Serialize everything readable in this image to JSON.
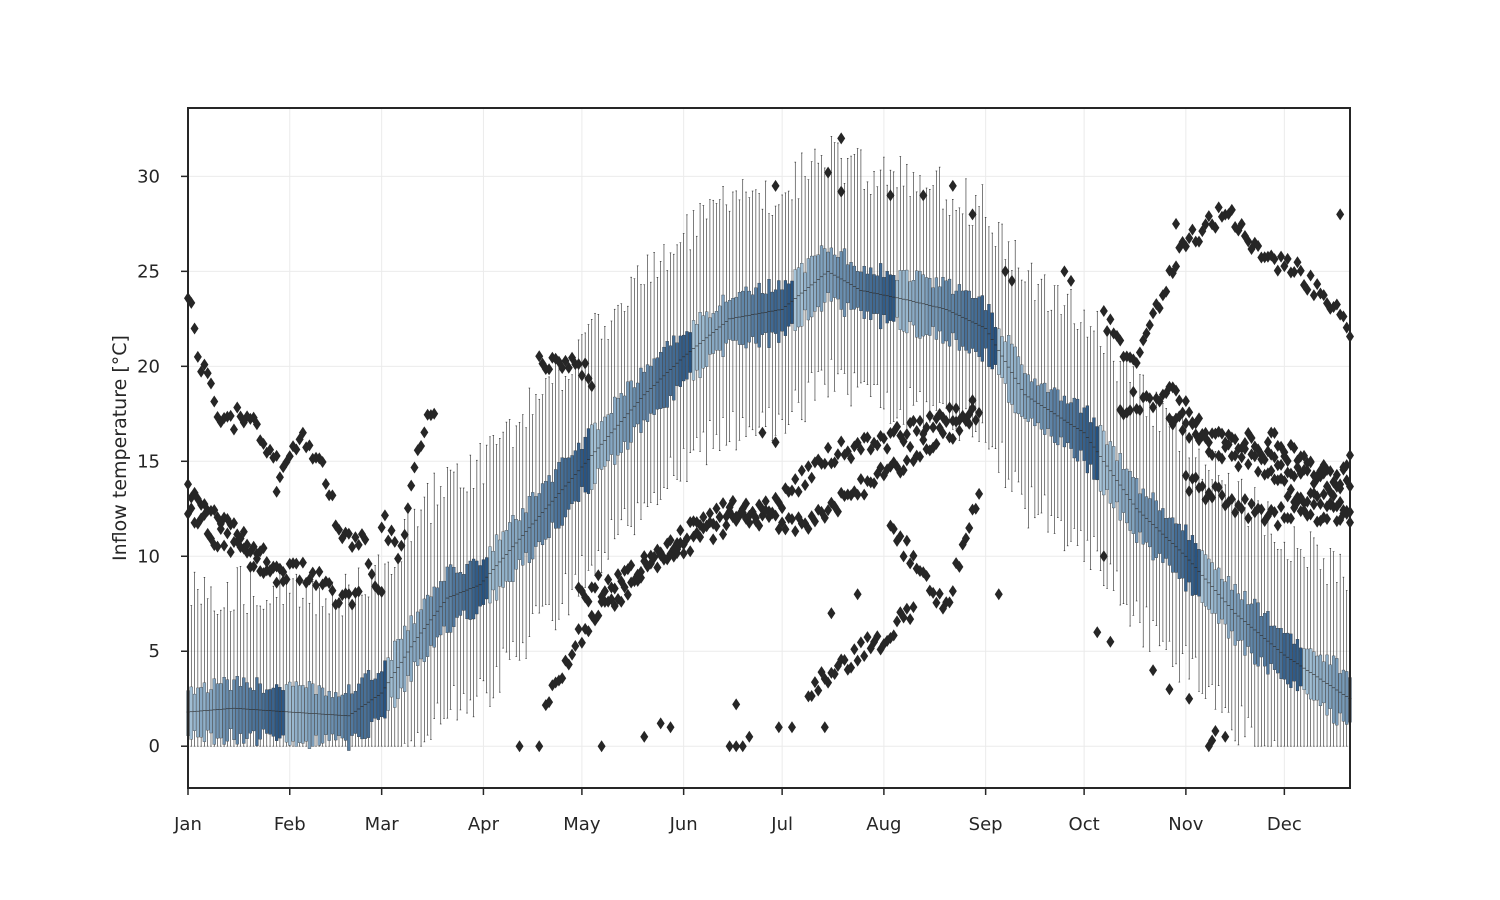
{
  "chart_data": {
    "type": "box",
    "title": "",
    "xlabel": "",
    "ylabel": "Inflow temperature [°C]",
    "x_tick_labels": [
      "Jan",
      "Feb",
      "Mar",
      "Apr",
      "May",
      "Jun",
      "Jul",
      "Aug",
      "Sep",
      "Oct",
      "Nov",
      "Dec"
    ],
    "y_ticks": [
      0,
      5,
      10,
      15,
      20,
      25,
      30
    ],
    "xlim": [
      1,
      355
    ],
    "ylim": [
      -2.2,
      33.6
    ],
    "grid": true,
    "box_color_light": "#a9c6da",
    "box_color_dark": "#1d4a7a",
    "flier_color": "#262626",
    "median_anchors": {
      "day": [
        1,
        15,
        32,
        50,
        60,
        70,
        80,
        90,
        105,
        120,
        140,
        152,
        166,
        182,
        196,
        206,
        220,
        232,
        244,
        256,
        274,
        290,
        305,
        320,
        335,
        355
      ],
      "median": [
        1.8,
        2.0,
        1.8,
        1.6,
        2.8,
        5.5,
        7.8,
        8.5,
        11.5,
        14.5,
        18.5,
        20.5,
        22.5,
        23.0,
        25.0,
        24.0,
        23.5,
        23.0,
        22.0,
        18.5,
        16.5,
        12.5,
        10.0,
        7.0,
        4.8,
        2.5
      ]
    },
    "outlier_tracks": [
      {
        "day": [
          0,
          10,
          20,
          30,
          38,
          48,
          53
        ],
        "value": [
          12.5,
          11.0,
          9.8,
          9.0,
          9.2,
          7.5,
          7.8
        ]
      },
      {
        "day": [
          0,
          10,
          20,
          30
        ],
        "value": [
          13.5,
          12.0,
          10.5,
          9.0
        ]
      },
      {
        "day": [
          0,
          5,
          12,
          20,
          28
        ],
        "value": [
          25.0,
          20.0,
          17.0,
          17.5,
          15.0
        ]
      },
      {
        "day": [
          28,
          35,
          40,
          48,
          55,
          60
        ],
        "value": [
          13.5,
          16.5,
          15.5,
          11.0,
          10.5,
          8.0
        ]
      },
      {
        "day": [
          60,
          66,
          70,
          76
        ],
        "value": [
          12.0,
          10.0,
          15.0,
          18.0
        ]
      },
      {
        "day": [
          120,
          135,
          150,
          168,
          182,
          198,
          212,
          228,
          240
        ],
        "value": [
          8.0,
          9.0,
          10.5,
          12.0,
          13.0,
          15.5,
          16.0,
          17.0,
          18.0
        ]
      },
      {
        "day": [
          150,
          160,
          170,
          185,
          200,
          215,
          232,
          242
        ],
        "value": [
          11.0,
          12.0,
          12.5,
          11.5,
          13.0,
          14.5,
          16.5,
          17.5
        ]
      },
      {
        "day": [
          110,
          118,
          125,
          135,
          145,
          150
        ],
        "value": [
          2.0,
          5.0,
          7.0,
          8.0,
          10.5,
          10.0
        ]
      },
      {
        "day": [
          108,
          116,
          124
        ],
        "value": [
          20.0,
          20.5,
          19.5
        ]
      },
      {
        "day": [
          190,
          205,
          212,
          218,
          222
        ],
        "value": [
          3.0,
          5.0,
          5.5,
          6.5,
          7.5
        ]
      },
      {
        "day": [
          215,
          225,
          232,
          242
        ],
        "value": [
          11.5,
          9.0,
          7.5,
          13.0
        ]
      },
      {
        "day": [
          280,
          290,
          298,
          305,
          310,
          318,
          325,
          335,
          345,
          355
        ],
        "value": [
          22.5,
          20.0,
          24.0,
          26.5,
          27.0,
          28.5,
          26.0,
          25.5,
          24.0,
          22.0
        ]
      },
      {
        "day": [
          285,
          300,
          312,
          325,
          340,
          355
        ],
        "value": [
          18.0,
          18.5,
          16.5,
          16.0,
          14.5,
          14.0
        ]
      },
      {
        "day": [
          300,
          312,
          325,
          335,
          345,
          355
        ],
        "value": [
          17.5,
          16.0,
          15.0,
          13.5,
          13.0,
          12.5
        ]
      },
      {
        "day": [
          305,
          318,
          330,
          342,
          355
        ],
        "value": [
          14.0,
          13.0,
          12.0,
          12.5,
          12.0
        ]
      },
      {
        "day": [
          330,
          340,
          350,
          355
        ],
        "value": [
          16.5,
          15.0,
          13.5,
          15.0
        ]
      }
    ],
    "outlier_points": [
      {
        "day": 102,
        "value": 0.0
      },
      {
        "day": 108,
        "value": 0.0
      },
      {
        "day": 127,
        "value": 0.0
      },
      {
        "day": 140,
        "value": 0.5
      },
      {
        "day": 145,
        "value": 1.2
      },
      {
        "day": 148,
        "value": 1.0
      },
      {
        "day": 166,
        "value": 0.0
      },
      {
        "day": 168,
        "value": 0.0
      },
      {
        "day": 170,
        "value": 0.0
      },
      {
        "day": 172,
        "value": 0.5
      },
      {
        "day": 168,
        "value": 2.2
      },
      {
        "day": 181,
        "value": 1.0
      },
      {
        "day": 185,
        "value": 1.0
      },
      {
        "day": 195,
        "value": 1.0
      },
      {
        "day": 197,
        "value": 7.0
      },
      {
        "day": 205,
        "value": 8.0
      },
      {
        "day": 215,
        "value": 29.0
      },
      {
        "day": 225,
        "value": 29.0
      },
      {
        "day": 234,
        "value": 29.5
      },
      {
        "day": 240,
        "value": 28.0
      },
      {
        "day": 200,
        "value": 29.2
      },
      {
        "day": 200,
        "value": 32.0
      },
      {
        "day": 196,
        "value": 30.2
      },
      {
        "day": 180,
        "value": 29.5
      },
      {
        "day": 302,
        "value": 27.5
      },
      {
        "day": 352,
        "value": 28.0
      },
      {
        "day": 248,
        "value": 8.0
      },
      {
        "day": 250,
        "value": 25.0
      },
      {
        "day": 252,
        "value": 24.5
      },
      {
        "day": 268,
        "value": 25.0
      },
      {
        "day": 270,
        "value": 24.5
      },
      {
        "day": 278,
        "value": 6.0
      },
      {
        "day": 282,
        "value": 5.5
      },
      {
        "day": 295,
        "value": 4.0
      },
      {
        "day": 300,
        "value": 3.0
      },
      {
        "day": 306,
        "value": 2.5
      },
      {
        "day": 312,
        "value": 0.0
      },
      {
        "day": 313,
        "value": 0.3
      },
      {
        "day": 314,
        "value": 0.8
      },
      {
        "day": 317,
        "value": 0.5
      },
      {
        "day": 280,
        "value": 10.0
      },
      {
        "day": 180,
        "value": 16.0
      },
      {
        "day": 176,
        "value": 16.5
      }
    ]
  }
}
